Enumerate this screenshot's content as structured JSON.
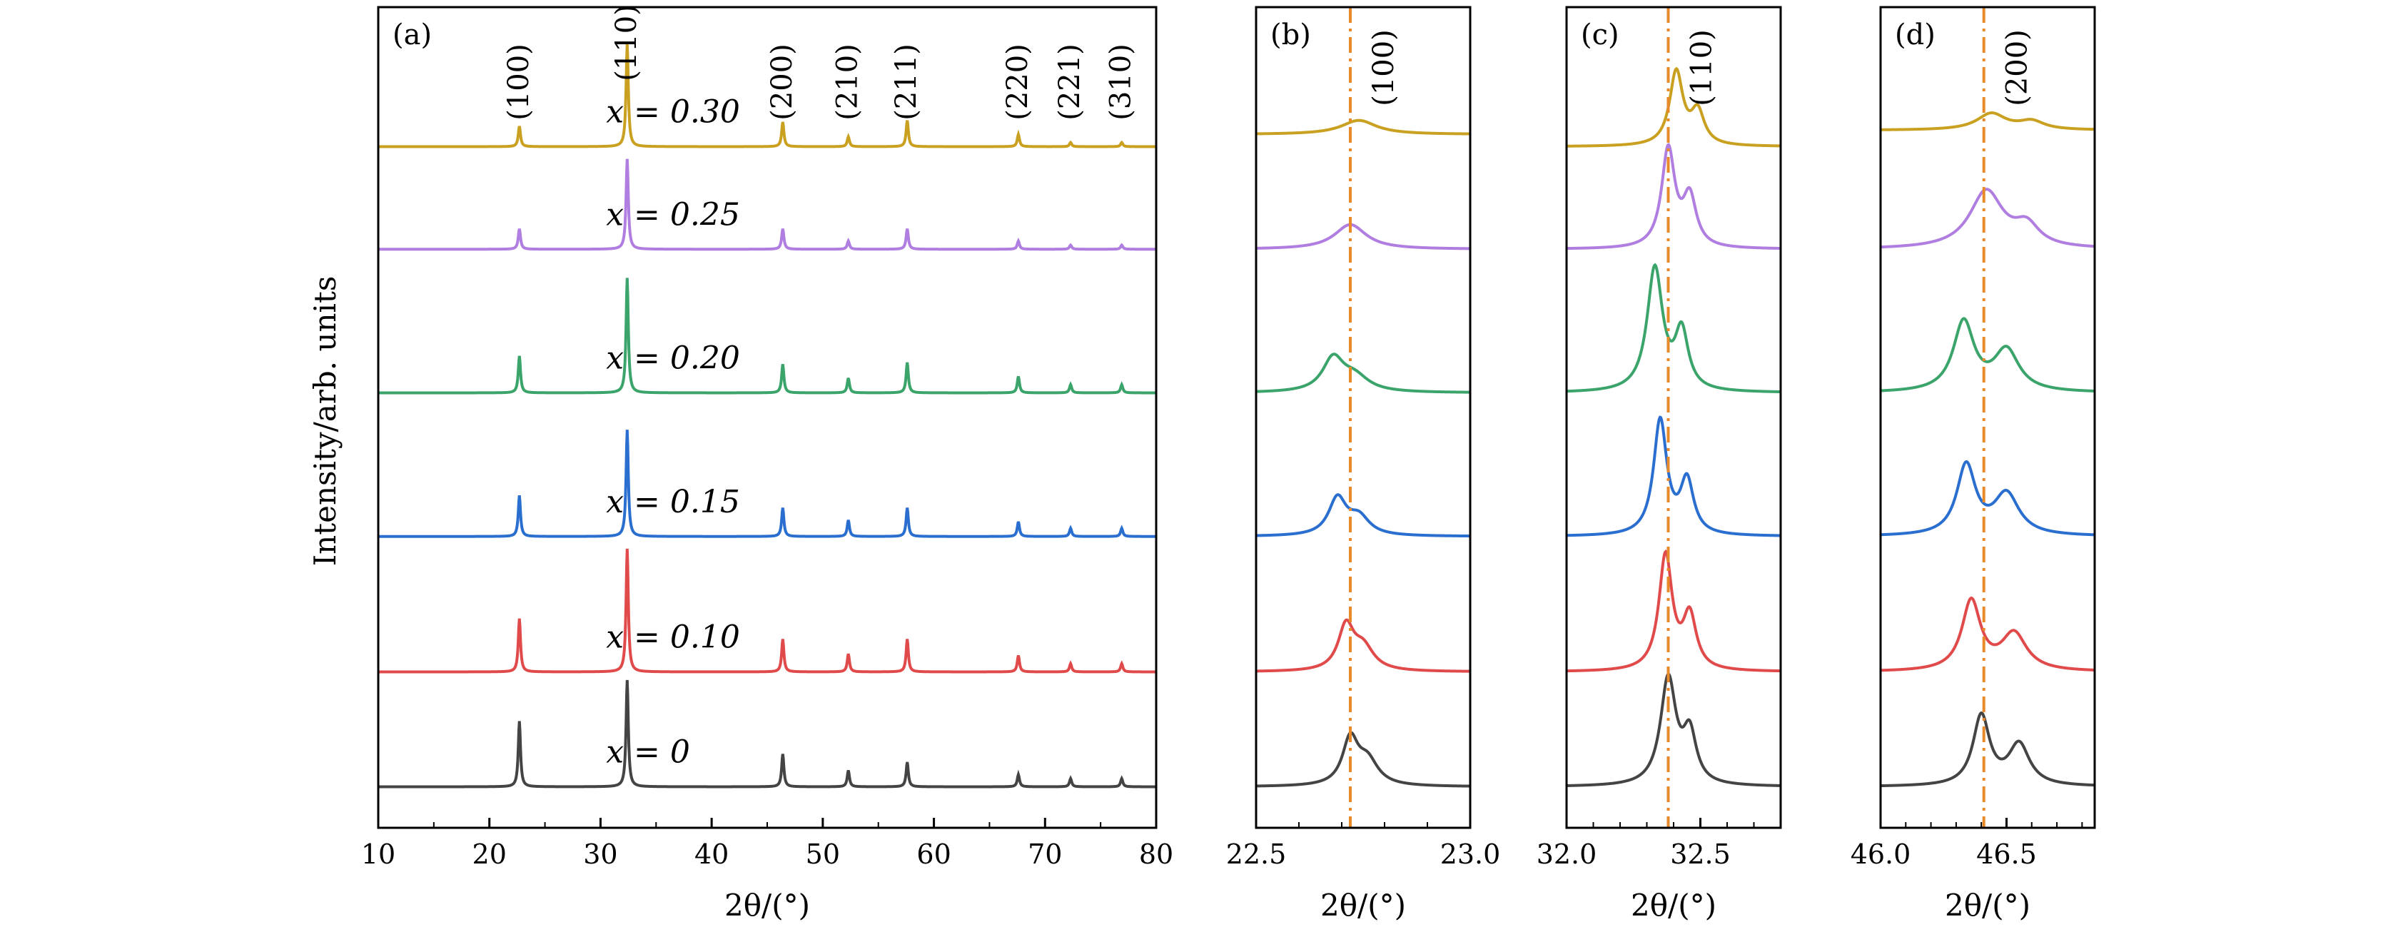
{
  "figure": {
    "ylabel": "Intensity/arb. units",
    "xlabel": "2θ/(°)"
  },
  "chart_data": [
    {
      "type": "line",
      "panel_label": "(a)",
      "xlabel": "2θ/(°)",
      "ylabel": "Intensity/arb. units",
      "xlim": [
        10,
        80
      ],
      "xticks": [
        10,
        20,
        30,
        40,
        50,
        60,
        70,
        80
      ],
      "y_ticks_shown": false,
      "grid": false,
      "peak_labels": [
        {
          "label": "(100)",
          "x": 22.7
        },
        {
          "label": "(110)",
          "x": 32.4
        },
        {
          "label": "(200)",
          "x": 46.4
        },
        {
          "label": "(210)",
          "x": 52.3
        },
        {
          "label": "(211)",
          "x": 57.6
        },
        {
          "label": "(220)",
          "x": 67.6
        },
        {
          "label": "(221)",
          "x": 72.3
        },
        {
          "label": "(310)",
          "x": 76.9
        }
      ],
      "series": [
        {
          "label": "x = 0",
          "color": "#444444",
          "baseline": 0.05,
          "peaks": [
            [
              22.7,
              0.08
            ],
            [
              32.4,
              0.13
            ],
            [
              46.4,
              0.04
            ],
            [
              52.3,
              0.02
            ],
            [
              57.6,
              0.03
            ],
            [
              67.6,
              0.015
            ],
            [
              72.3,
              0.01
            ],
            [
              76.9,
              0.01
            ]
          ]
        },
        {
          "label": "x = 0.10",
          "color": "#e04a4a",
          "baseline": 0.19,
          "peaks": [
            [
              22.7,
              0.065
            ],
            [
              32.4,
              0.15
            ],
            [
              46.4,
              0.04
            ],
            [
              52.3,
              0.022
            ],
            [
              57.6,
              0.04
            ],
            [
              67.6,
              0.02
            ],
            [
              72.3,
              0.01
            ],
            [
              76.9,
              0.01
            ]
          ]
        },
        {
          "label": "x = 0.15",
          "color": "#2a6fcf",
          "baseline": 0.355,
          "peaks": [
            [
              22.7,
              0.05
            ],
            [
              32.4,
              0.13
            ],
            [
              46.4,
              0.035
            ],
            [
              52.3,
              0.02
            ],
            [
              57.6,
              0.035
            ],
            [
              67.6,
              0.018
            ],
            [
              72.3,
              0.01
            ],
            [
              76.9,
              0.01
            ]
          ]
        },
        {
          "label": "x = 0.20",
          "color": "#3aa46a",
          "baseline": 0.53,
          "peaks": [
            [
              22.7,
              0.045
            ],
            [
              32.4,
              0.14
            ],
            [
              46.4,
              0.035
            ],
            [
              52.3,
              0.018
            ],
            [
              57.6,
              0.037
            ],
            [
              67.6,
              0.02
            ],
            [
              72.3,
              0.01
            ],
            [
              76.9,
              0.01
            ]
          ]
        },
        {
          "label": "x = 0.25",
          "color": "#b07ee0",
          "baseline": 0.705,
          "peaks": [
            [
              22.7,
              0.025
            ],
            [
              32.4,
              0.11
            ],
            [
              46.4,
              0.025
            ],
            [
              52.3,
              0.01
            ],
            [
              57.6,
              0.025
            ],
            [
              67.6,
              0.01
            ],
            [
              72.3,
              0.005
            ],
            [
              76.9,
              0.005
            ]
          ]
        },
        {
          "label": "x = 0.30",
          "color": "#c9a020",
          "baseline": 0.83,
          "peaks": [
            [
              22.7,
              0.025
            ],
            [
              32.4,
              0.125
            ],
            [
              46.4,
              0.03
            ],
            [
              52.3,
              0.012
            ],
            [
              57.6,
              0.032
            ],
            [
              67.6,
              0.015
            ],
            [
              72.3,
              0.005
            ],
            [
              76.9,
              0.005
            ]
          ]
        }
      ]
    },
    {
      "type": "line",
      "panel_label": "(b)",
      "peak_label": "(100)",
      "xlabel": "2θ/(°)",
      "xlim": [
        22.5,
        23.0
      ],
      "xticks": [
        22.5,
        23.0
      ],
      "xtick_labels": [
        "22.5",
        "23.0"
      ],
      "reference_line_x": 22.72,
      "reference_line_color": "#e8892a",
      "series": [
        {
          "color": "#444444",
          "baseline": 0.05,
          "peaks": [
            [
              22.72,
              0.055,
              0.022
            ],
            [
              22.76,
              0.03,
              0.03
            ]
          ]
        },
        {
          "color": "#e04a4a",
          "baseline": 0.19,
          "peaks": [
            [
              22.71,
              0.053,
              0.022
            ],
            [
              22.75,
              0.028,
              0.03
            ]
          ]
        },
        {
          "color": "#2a6fcf",
          "baseline": 0.355,
          "peaks": [
            [
              22.69,
              0.045,
              0.025
            ],
            [
              22.74,
              0.022,
              0.03
            ]
          ]
        },
        {
          "color": "#3aa46a",
          "baseline": 0.53,
          "peaks": [
            [
              22.68,
              0.04,
              0.03
            ],
            [
              22.73,
              0.018,
              0.04
            ]
          ]
        },
        {
          "color": "#b07ee0",
          "baseline": 0.705,
          "peaks": [
            [
              22.72,
              0.03,
              0.045
            ]
          ]
        },
        {
          "color": "#c9a020",
          "baseline": 0.845,
          "peaks": [
            [
              22.74,
              0.017,
              0.05
            ]
          ]
        }
      ]
    },
    {
      "type": "line",
      "panel_label": "(c)",
      "peak_label": "(110)",
      "xlabel": "2θ/(°)",
      "xlim": [
        32.0,
        32.8
      ],
      "xticks": [
        32.0,
        32.5
      ],
      "xtick_labels": [
        "32.0",
        "32.5"
      ],
      "reference_line_x": 32.38,
      "reference_line_color": "#e8892a",
      "series": [
        {
          "color": "#444444",
          "baseline": 0.05,
          "peaks": [
            [
              32.38,
              0.13,
              0.035
            ],
            [
              32.46,
              0.06,
              0.03
            ]
          ]
        },
        {
          "color": "#e04a4a",
          "baseline": 0.19,
          "peaks": [
            [
              32.37,
              0.14,
              0.03
            ],
            [
              32.46,
              0.065,
              0.03
            ]
          ]
        },
        {
          "color": "#2a6fcf",
          "baseline": 0.355,
          "peaks": [
            [
              32.35,
              0.14,
              0.03
            ],
            [
              32.45,
              0.065,
              0.03
            ]
          ]
        },
        {
          "color": "#3aa46a",
          "baseline": 0.53,
          "peaks": [
            [
              32.33,
              0.15,
              0.035
            ],
            [
              32.43,
              0.07,
              0.03
            ]
          ]
        },
        {
          "color": "#b07ee0",
          "baseline": 0.705,
          "peaks": [
            [
              32.38,
              0.12,
              0.03
            ],
            [
              32.46,
              0.06,
              0.03
            ]
          ]
        },
        {
          "color": "#c9a020",
          "baseline": 0.83,
          "peaks": [
            [
              32.41,
              0.09,
              0.03
            ],
            [
              32.49,
              0.04,
              0.03
            ]
          ]
        }
      ]
    },
    {
      "type": "line",
      "panel_label": "(d)",
      "peak_label": "(200)",
      "xlabel": "2θ/(°)",
      "xlim": [
        46.0,
        46.85
      ],
      "xticks": [
        46.0,
        46.5
      ],
      "xtick_labels": [
        "46.0",
        "46.5"
      ],
      "reference_line_x": 46.41,
      "reference_line_color": "#e8892a",
      "series": [
        {
          "color": "#444444",
          "baseline": 0.05,
          "peaks": [
            [
              46.4,
              0.085,
              0.04
            ],
            [
              46.55,
              0.05,
              0.05
            ]
          ]
        },
        {
          "color": "#e04a4a",
          "baseline": 0.19,
          "peaks": [
            [
              46.36,
              0.085,
              0.045
            ],
            [
              46.53,
              0.045,
              0.06
            ]
          ]
        },
        {
          "color": "#2a6fcf",
          "baseline": 0.355,
          "peaks": [
            [
              46.34,
              0.085,
              0.045
            ],
            [
              46.5,
              0.05,
              0.06
            ]
          ]
        },
        {
          "color": "#3aa46a",
          "baseline": 0.53,
          "peaks": [
            [
              46.33,
              0.085,
              0.05
            ],
            [
              46.5,
              0.05,
              0.06
            ]
          ]
        },
        {
          "color": "#b07ee0",
          "baseline": 0.705,
          "peaks": [
            [
              46.42,
              0.07,
              0.08
            ],
            [
              46.58,
              0.025,
              0.06
            ]
          ]
        },
        {
          "color": "#c9a020",
          "baseline": 0.85,
          "peaks": [
            [
              46.44,
              0.02,
              0.07
            ],
            [
              46.6,
              0.01,
              0.06
            ]
          ]
        }
      ]
    }
  ]
}
